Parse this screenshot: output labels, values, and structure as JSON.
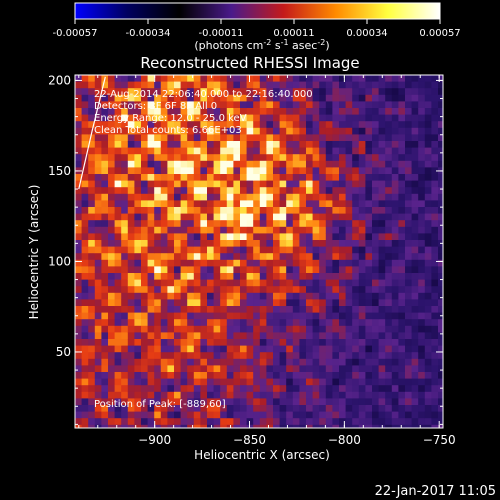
{
  "chart_data": {
    "type": "heatmap",
    "title": "Reconstructed RHESSI Image",
    "colorbar": {
      "ticks": [
        "-0.00057",
        "-0.00034",
        "-0.00011",
        "0.00011",
        "0.00034",
        "0.00057"
      ],
      "unit_main": "(photons cm",
      "unit_exp1": "-2",
      "unit_mid": " s",
      "unit_exp2": "-1",
      "unit_end": " asec",
      "unit_exp3": "-2",
      "unit_close": ")",
      "range": [
        -0.00057,
        0.00057
      ],
      "colors": [
        "#0000ff",
        "#000060",
        "#000000",
        "#4a1a8a",
        "#c41a1a",
        "#ff8a00",
        "#ffff40",
        "#ffffff"
      ]
    },
    "xlabel": "Heliocentric X (arcsec)",
    "ylabel": "Heliocentric Y (arcsec)",
    "xlim": [
      -942,
      -748
    ],
    "ylim": [
      8,
      203
    ],
    "xticks": [
      -900,
      -850,
      -800,
      -750
    ],
    "yticks": [
      50,
      100,
      150,
      200
    ],
    "xtick_labels": [
      "−900",
      "−850",
      "−800",
      "−750"
    ],
    "ytick_labels": [
      "50",
      "100",
      "150",
      "200"
    ],
    "annotations": {
      "time_range": "22-Aug-2014 22:06:40.000 to 22:16:40.000",
      "detectors": "Detectors: 3F 6F 8F All 0",
      "energy": "Energy Range: 12.0 - 25.0 keV",
      "clean": "Clean    Total counts: 6.66E+03",
      "peak": "Position of Peak: [-889,60]"
    },
    "peak_position": [
      -889,
      60
    ],
    "limb": [
      [
        -940,
        140
      ],
      [
        -933,
        172
      ],
      [
        -926,
        202
      ]
    ]
  },
  "footer": {
    "timestamp": "22-Jan-2017 11:05"
  }
}
